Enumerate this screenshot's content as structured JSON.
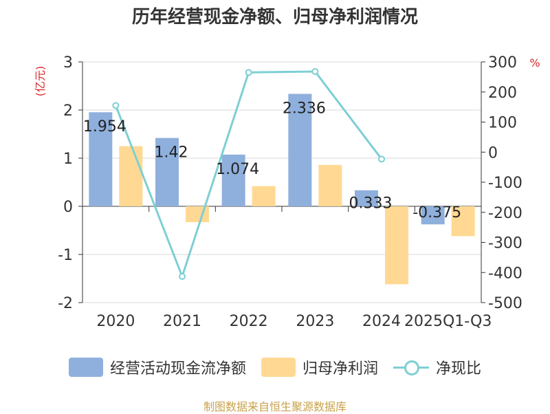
{
  "chart_data": {
    "type": "bar",
    "title": "历年经营现金净额、归母净利润情况",
    "categories": [
      "2020",
      "2021",
      "2022",
      "2023",
      "2024",
      "2025Q1-Q3"
    ],
    "series": [
      {
        "name": "经营活动现金流净额",
        "kind": "bar",
        "axis": "left",
        "values": [
          1.954,
          1.42,
          1.074,
          2.336,
          0.333,
          -0.375
        ],
        "labels": [
          "1.954",
          "1.42",
          "1.074",
          "2.336",
          "0.333",
          "-0.375"
        ],
        "color": "#8fb0dc"
      },
      {
        "name": "归母净利润",
        "kind": "bar",
        "axis": "left",
        "values": [
          1.25,
          -0.33,
          0.42,
          0.86,
          -1.62,
          -0.62
        ],
        "color": "#ffd993"
      },
      {
        "name": "净现比",
        "kind": "line",
        "axis": "right",
        "values": [
          155,
          -413,
          265,
          268,
          -23,
          null
        ],
        "color": "#7dcfd3"
      }
    ],
    "left_axis": {
      "label": "(亿元)",
      "min": -2,
      "max": 3,
      "ticks": [
        "3",
        "2",
        "1",
        "0",
        "-1",
        "-2"
      ],
      "color": "#d62728"
    },
    "right_axis": {
      "label": "%",
      "min": -500,
      "max": 300,
      "ticks": [
        "300",
        "200",
        "100",
        "0",
        "-100",
        "-200",
        "-300",
        "-400",
        "-500"
      ],
      "color": "#d62728"
    },
    "grid": true,
    "legend": "bottom"
  },
  "source": "制图数据来自恒生聚源数据库"
}
